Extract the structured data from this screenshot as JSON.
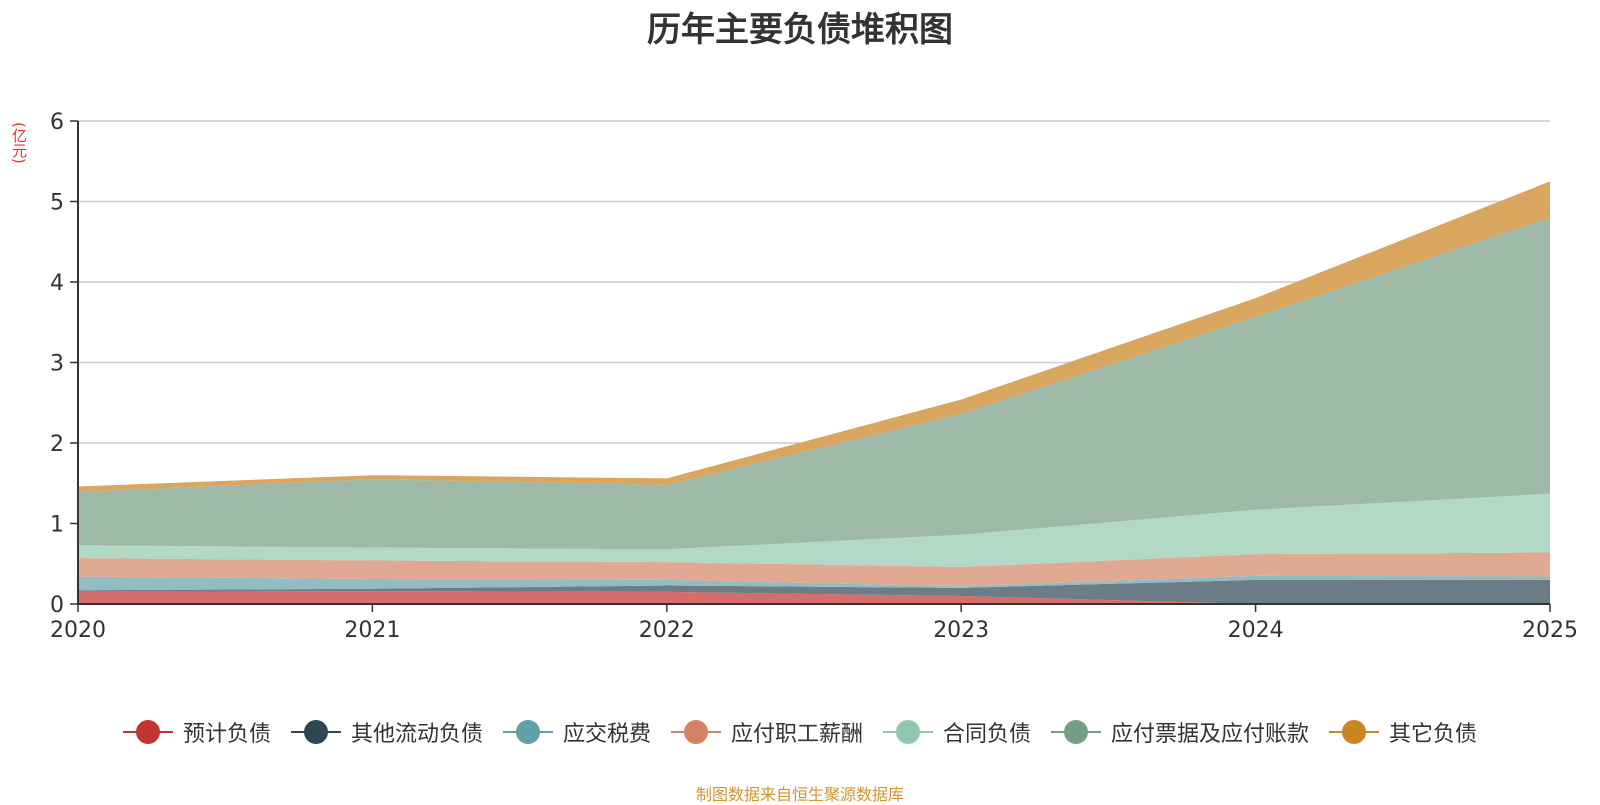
{
  "chart_data": {
    "type": "area",
    "stacked": true,
    "title": "历年主要负债堆积图",
    "ylabel": "(亿元)",
    "xlabel": "",
    "x": [
      "2020",
      "2021",
      "2022",
      "2023",
      "2024",
      "2025"
    ],
    "ylim": [
      0,
      6
    ],
    "yticks": [
      "0",
      "1",
      "2",
      "3",
      "4",
      "5",
      "6"
    ],
    "grid": true,
    "legend_position": "bottom",
    "series": [
      {
        "name": "预计负债",
        "values": [
          0.15,
          0.16,
          0.15,
          0.1,
          0.0,
          0.0
        ],
        "color": "#c23531",
        "fill": "#d76c6a"
      },
      {
        "name": "其他流动负债",
        "values": [
          0.02,
          0.03,
          0.08,
          0.1,
          0.3,
          0.3
        ],
        "color": "#2f4554",
        "fill": "#6d7d88"
      },
      {
        "name": "应交税费",
        "values": [
          0.17,
          0.12,
          0.07,
          0.02,
          0.05,
          0.04
        ],
        "color": "#61a0a8",
        "fill": "#90bcc2"
      },
      {
        "name": "应付职工薪酬",
        "values": [
          0.23,
          0.23,
          0.22,
          0.24,
          0.27,
          0.3
        ],
        "color": "#d48265",
        "fill": "#e1a893"
      },
      {
        "name": "合同负债",
        "values": [
          0.16,
          0.16,
          0.16,
          0.4,
          0.55,
          0.73
        ],
        "color": "#91c7ae",
        "fill": "#b2d8c6"
      },
      {
        "name": "应付票据及应付账款",
        "values": [
          0.66,
          0.85,
          0.8,
          1.5,
          2.4,
          3.43
        ],
        "color": "#749f83",
        "fill": "#9eb9a7"
      },
      {
        "name": "其它负债",
        "values": [
          0.07,
          0.05,
          0.08,
          0.18,
          0.23,
          0.45
        ],
        "color": "#ca8622",
        "fill": "#d8a65e"
      }
    ]
  },
  "source_note": "制图数据来自恒生聚源数据库"
}
